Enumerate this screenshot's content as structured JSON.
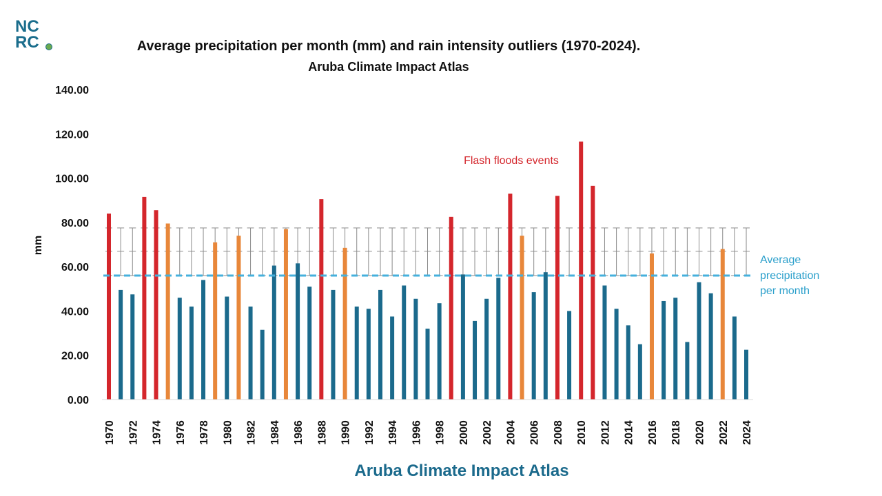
{
  "logo": {
    "line1": "NC",
    "line2": "RC"
  },
  "title": "Average precipitation per month (mm) and rain intensity outliers (1970-2024).",
  "subtitle": "Aruba Climate Impact Atlas",
  "footer": "Aruba Climate Impact Atlas",
  "colors": {
    "normal": "#1b6a8c",
    "moderate": "#e8873a",
    "flash": "#d4262c",
    "average_line": "#45b0dc",
    "error_bars": "#8a8a8a",
    "footer": "#1b6a8c",
    "annotation_flash": "#d4262c",
    "annotation_avg": "#2a9fcb"
  },
  "chart_data": {
    "type": "bar",
    "title": "Average precipitation per month (mm) and rain intensity outliers (1970-2024).",
    "subtitle": "Aruba Climate Impact Atlas",
    "ylabel": "mm",
    "xlabel": "",
    "ylim": [
      0,
      140
    ],
    "y_ticks": [
      "0.00",
      "20.00",
      "40.00",
      "60.00",
      "80.00",
      "100.00",
      "120.00",
      "140.00"
    ],
    "x_tick_labels": [
      "1970",
      "1972",
      "1974",
      "1976",
      "1978",
      "1980",
      "1982",
      "1984",
      "1986",
      "1988",
      "1990",
      "1992",
      "1994",
      "1996",
      "1998",
      "2000",
      "2002",
      "2004",
      "2006",
      "2008",
      "2010",
      "2012",
      "2014",
      "2016",
      "2018",
      "2020",
      "2022",
      "2024"
    ],
    "categories": [
      1970,
      1971,
      1972,
      1973,
      1974,
      1975,
      1976,
      1977,
      1978,
      1979,
      1980,
      1981,
      1982,
      1983,
      1984,
      1985,
      1986,
      1987,
      1988,
      1989,
      1990,
      1991,
      1992,
      1993,
      1994,
      1995,
      1996,
      1997,
      1998,
      1999,
      2000,
      2001,
      2002,
      2003,
      2004,
      2005,
      2006,
      2007,
      2008,
      2009,
      2010,
      2011,
      2012,
      2013,
      2014,
      2015,
      2016,
      2017,
      2018,
      2019,
      2020,
      2021,
      2022,
      2023,
      2024
    ],
    "values": [
      84.0,
      49.5,
      47.5,
      91.5,
      85.5,
      79.5,
      46.0,
      42.0,
      54.0,
      71.0,
      46.5,
      74.0,
      42.0,
      31.5,
      60.5,
      77.0,
      61.5,
      51.0,
      90.5,
      49.5,
      68.5,
      42.0,
      41.0,
      49.5,
      37.5,
      51.5,
      45.5,
      32.0,
      43.5,
      82.5,
      56.5,
      35.5,
      45.5,
      55.0,
      93.0,
      74.0,
      48.5,
      57.5,
      92.0,
      40.0,
      116.5,
      96.5,
      51.5,
      41.0,
      33.5,
      25.0,
      66.0,
      44.5,
      46.0,
      26.0,
      53.0,
      48.0,
      68.0,
      37.5,
      22.5
    ],
    "categories_flag": [
      "flash",
      "normal",
      "normal",
      "flash",
      "flash",
      "moderate",
      "normal",
      "normal",
      "normal",
      "moderate",
      "normal",
      "moderate",
      "normal",
      "normal",
      "normal",
      "moderate",
      "normal",
      "normal",
      "flash",
      "normal",
      "moderate",
      "normal",
      "normal",
      "normal",
      "normal",
      "normal",
      "normal",
      "normal",
      "normal",
      "flash",
      "normal",
      "normal",
      "normal",
      "normal",
      "flash",
      "moderate",
      "normal",
      "normal",
      "flash",
      "normal",
      "flash",
      "flash",
      "normal",
      "normal",
      "normal",
      "normal",
      "moderate",
      "normal",
      "normal",
      "normal",
      "normal",
      "normal",
      "moderate",
      "normal",
      "normal"
    ],
    "average": 56.0,
    "error_band": {
      "center": 67.0,
      "low": 56.0,
      "high": 77.5
    },
    "annotations": {
      "flash_floods": "Flash floods events",
      "average_line": [
        "Average",
        "precipitation",
        "per month"
      ]
    },
    "grid": false,
    "legend": "none"
  }
}
